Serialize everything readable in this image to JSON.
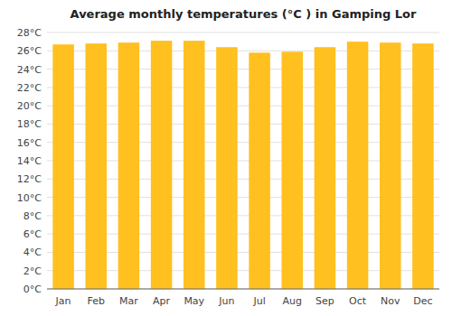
{
  "chart_data": {
    "type": "bar",
    "title": "Average monthly temperatures (°C ) in Gamping Lor",
    "categories": [
      "Jan",
      "Feb",
      "Mar",
      "Apr",
      "May",
      "Jun",
      "Jul",
      "Aug",
      "Sep",
      "Oct",
      "Nov",
      "Dec"
    ],
    "values": [
      26.7,
      26.8,
      26.9,
      27.1,
      27.1,
      26.4,
      25.8,
      25.9,
      26.4,
      27.0,
      26.9,
      26.8
    ],
    "color": "#FFC020",
    "ylim": [
      0,
      28
    ],
    "yticks": [
      {
        "value": 0,
        "label": "0°C"
      },
      {
        "value": 2,
        "label": "2°C"
      },
      {
        "value": 4,
        "label": "4°C"
      },
      {
        "value": 6,
        "label": "6°C"
      },
      {
        "value": 8,
        "label": "8°C"
      },
      {
        "value": 10,
        "label": "10°C"
      },
      {
        "value": 12,
        "label": "12°C"
      },
      {
        "value": 14,
        "label": "14°C"
      },
      {
        "value": 16,
        "label": "16°C"
      },
      {
        "value": 18,
        "label": "18°C"
      },
      {
        "value": 20,
        "label": "20°C"
      },
      {
        "value": 22,
        "label": "22°C"
      },
      {
        "value": 24,
        "label": "24°C"
      },
      {
        "value": 26,
        "label": "26°C"
      },
      {
        "value": 28,
        "label": "28°C"
      }
    ],
    "grid": true
  }
}
